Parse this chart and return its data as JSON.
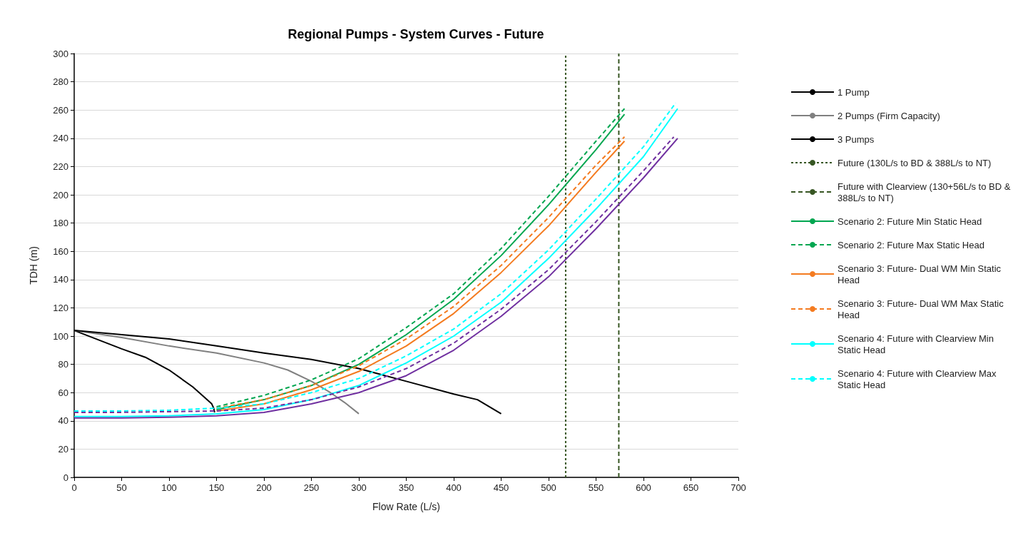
{
  "chart_data": {
    "type": "line",
    "title": "Regional Pumps - System Curves - Future",
    "xlabel": "Flow Rate (L/s)",
    "ylabel": "TDH (m)",
    "xlim": [
      0,
      700
    ],
    "xticks": [
      0,
      50,
      100,
      150,
      200,
      250,
      300,
      350,
      400,
      450,
      500,
      550,
      600,
      650,
      700
    ],
    "ylim": [
      0,
      300
    ],
    "yticks": [
      0,
      20,
      40,
      60,
      80,
      100,
      120,
      140,
      160,
      180,
      200,
      220,
      240,
      260,
      280,
      300
    ],
    "grid": "y",
    "legend": "right",
    "marker": "none",
    "line_style": "solid",
    "series": [
      {
        "name": "1 Pump",
        "color": "#000000",
        "x": [
          0,
          50,
          75,
          100,
          125,
          140,
          145,
          147,
          148
        ],
        "values": [
          104,
          91,
          85,
          76,
          64,
          55,
          52,
          49,
          46
        ]
      },
      {
        "name": "2 Pumps (Firm Capacity)",
        "color": "#808080",
        "x": [
          0,
          50,
          100,
          150,
          200,
          225,
          250,
          270,
          285,
          300
        ],
        "values": [
          104,
          99,
          93,
          88,
          81,
          76,
          68,
          60,
          53,
          45
        ]
      },
      {
        "name": "3 Pumps",
        "color": "#000000",
        "x": [
          0,
          50,
          100,
          150,
          200,
          250,
          300,
          350,
          400,
          425,
          450
        ],
        "values": [
          104,
          101,
          98,
          93,
          88,
          83.5,
          77,
          68,
          59,
          55,
          45
        ]
      },
      {
        "name": "Future (130L/s to BD & 388L/s to NT)",
        "color": "#375623",
        "line_style": "dotted",
        "x": [
          518,
          518
        ],
        "values": [
          0,
          300
        ]
      },
      {
        "name": "Future with Clearview (130+56L/s to BD & 388L/s to NT)",
        "color": "#375623",
        "line_style": "dashed",
        "x": [
          574,
          574
        ],
        "values": [
          0,
          300
        ]
      },
      {
        "name": "Scenario 2: Future Min Static Head",
        "color": "#00a650",
        "x": [
          150,
          200,
          250,
          300,
          350,
          400,
          450,
          500,
          550,
          580
        ],
        "values": [
          48,
          55,
          65,
          80,
          101,
          126,
          157,
          193,
          232,
          257
        ]
      },
      {
        "name": "Scenario 2: Future Max Static Head",
        "color": "#00a650",
        "line_style": "dashed",
        "x": [
          150,
          200,
          250,
          300,
          350,
          400,
          450,
          500,
          550,
          580
        ],
        "values": [
          50,
          58,
          69,
          84,
          106,
          130,
          162,
          199,
          238,
          261
        ]
      },
      {
        "name": "Scenario 3: Future- Dual WM Min Static Head",
        "color": "#f47b20",
        "x": [
          150,
          200,
          250,
          300,
          350,
          400,
          450,
          500,
          550,
          580
        ],
        "values": [
          47,
          52,
          62,
          75,
          93,
          116,
          145,
          178,
          216,
          238
        ]
      },
      {
        "name": "Scenario 3: Future- Dual WM Max Static Head",
        "color": "#f47b20",
        "line_style": "dashed",
        "x": [
          150,
          200,
          250,
          300,
          350,
          400,
          450,
          500,
          550,
          580
        ],
        "values": [
          49,
          55,
          65,
          79,
          98,
          121,
          150,
          184,
          221,
          241
        ]
      },
      {
        "name": "Scenario 4: Future with Clearview Min Static Head",
        "color": "#00ffff",
        "x": [
          0,
          50,
          100,
          150,
          200,
          250,
          300,
          350,
          400,
          450,
          500,
          550,
          600,
          636
        ],
        "values": [
          43,
          43,
          43.5,
          45,
          48,
          55,
          65,
          81,
          100,
          124,
          155,
          190,
          227,
          261
        ]
      },
      {
        "name": "Scenario 4: Future with Clearview Max Static Head",
        "color": "#00ffff",
        "line_style": "dashed",
        "x": [
          0,
          50,
          100,
          150,
          200,
          250,
          300,
          350,
          400,
          450,
          500,
          550,
          600,
          634
        ],
        "values": [
          47,
          47,
          47.5,
          49,
          52,
          60,
          70,
          86,
          105,
          130,
          161,
          197,
          234,
          265
        ]
      },
      {
        "color": "#7030a0",
        "x": [
          0,
          50,
          100,
          150,
          200,
          250,
          300,
          350,
          400,
          450,
          500,
          550,
          600,
          636
        ],
        "values": [
          42,
          42,
          42.5,
          43.5,
          46,
          52,
          60,
          72,
          90,
          114,
          142,
          176,
          212,
          240
        ]
      },
      {
        "color": "#7030a0",
        "line_style": "dashed",
        "x": [
          0,
          50,
          100,
          150,
          200,
          250,
          300,
          350,
          400,
          450,
          500,
          550,
          600,
          632
        ],
        "values": [
          46,
          46,
          46.5,
          47,
          49,
          55,
          64,
          77,
          95,
          119,
          147,
          181,
          217,
          241
        ]
      }
    ]
  }
}
